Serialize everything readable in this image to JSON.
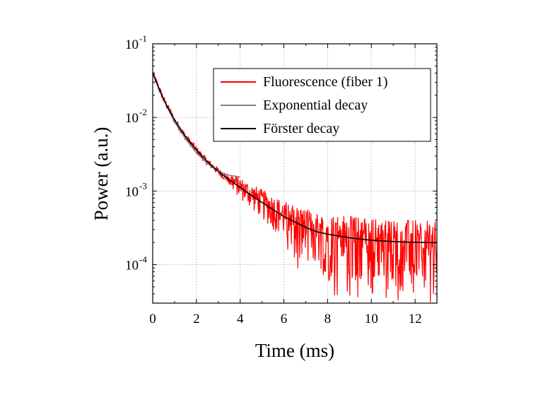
{
  "chart_data": {
    "type": "line",
    "xlabel": "Time (ms)",
    "ylabel": "Power (a.u.)",
    "xlim": [
      0,
      13
    ],
    "ylim": [
      3e-05,
      0.1
    ],
    "yscale": "log",
    "grid": true,
    "legend_position": "top-right",
    "x_ticks": [
      {
        "value": 0,
        "label": "0"
      },
      {
        "value": 2,
        "label": "2"
      },
      {
        "value": 4,
        "label": "4"
      },
      {
        "value": 6,
        "label": "6"
      },
      {
        "value": 8,
        "label": "8"
      },
      {
        "value": 10,
        "label": "10"
      },
      {
        "value": 12,
        "label": "12"
      }
    ],
    "y_ticks": [
      {
        "value": 0.1,
        "base": "10",
        "exp": "-1"
      },
      {
        "value": 0.01,
        "base": "10",
        "exp": "-2"
      },
      {
        "value": 0.001,
        "base": "10",
        "exp": "-3"
      },
      {
        "value": 0.0001,
        "base": "10",
        "exp": "-4"
      }
    ],
    "series": [
      {
        "name": "Fluorescence (fiber 1)",
        "color": "#ff0000",
        "x": [
          0,
          0.5,
          1,
          1.5,
          2,
          2.5,
          3,
          3.5,
          4,
          4.5,
          5,
          5.5,
          6,
          6.5,
          7,
          7.5,
          8,
          8.5,
          9,
          9.5,
          10,
          10.5,
          11,
          11.5,
          12,
          12.5,
          13
        ],
        "y": [
          0.04,
          0.0175,
          0.0092,
          0.0055,
          0.0036,
          0.0025,
          0.00185,
          0.00142,
          0.00112,
          0.00088,
          0.0007,
          0.00056,
          0.00045,
          0.00038,
          0.00032,
          0.00028,
          0.00026,
          0.000245,
          0.000232,
          0.000222,
          0.000215,
          0.00021,
          0.000206,
          0.000203,
          0.000201,
          0.0002,
          0.000199
        ]
      },
      {
        "name": "Exponential decay",
        "color": "#808080",
        "x": [
          0,
          0.5,
          1,
          1.5,
          2,
          2.5,
          3,
          3.5,
          4
        ],
        "y": [
          0.04,
          0.0172,
          0.0087,
          0.0051,
          0.0033,
          0.00236,
          0.00186,
          0.00164,
          0.00155
        ]
      },
      {
        "name": "Förster decay",
        "color": "#000000",
        "x": [
          0,
          0.5,
          1,
          1.5,
          2,
          2.5,
          3,
          3.5,
          4,
          4.5,
          5,
          5.5,
          6,
          6.5,
          7,
          7.5,
          8,
          8.5,
          9,
          9.5,
          10,
          10.5,
          11,
          11.5,
          12,
          12.5,
          13
        ],
        "y": [
          0.04,
          0.0175,
          0.0092,
          0.0055,
          0.0036,
          0.0025,
          0.00185,
          0.00142,
          0.00112,
          0.00088,
          0.0007,
          0.00056,
          0.00045,
          0.00038,
          0.00032,
          0.00028,
          0.00026,
          0.000245,
          0.000232,
          0.000222,
          0.000215,
          0.00021,
          0.000206,
          0.000203,
          0.000201,
          0.0002,
          0.000199
        ]
      }
    ]
  }
}
